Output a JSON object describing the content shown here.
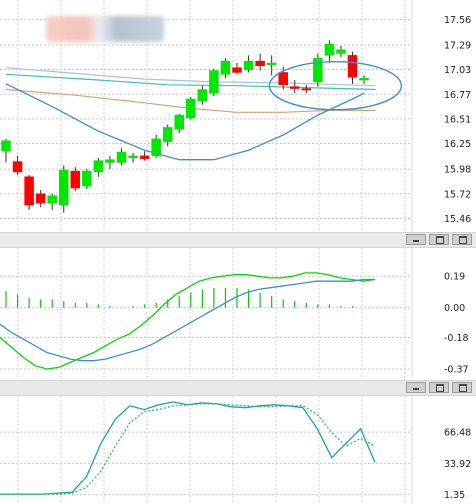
{
  "chart_data": [
    {
      "type": "candlestick",
      "y_ticks": [
        "17.56",
        "17.29",
        "17.03",
        "16.77",
        "16.51",
        "16.25",
        "15.98",
        "15.72",
        "15.46"
      ],
      "ylim": [
        15.38,
        17.68
      ],
      "grid": true,
      "colors": {
        "up": "#00e800",
        "down": "#ff0000",
        "ma_blue": "#3a8fd8",
        "ma_orange": "#e0a070",
        "ma_teal": "#3fc0b0",
        "ma_lightblue": "#9ec6e4",
        "circle": "#3a8fd8"
      },
      "candles": [
        {
          "o": 16.17,
          "h": 16.3,
          "l": 16.05,
          "c": 16.28
        },
        {
          "o": 16.06,
          "h": 16.12,
          "l": 15.92,
          "c": 15.95
        },
        {
          "o": 15.9,
          "h": 15.92,
          "l": 15.55,
          "c": 15.6
        },
        {
          "o": 15.72,
          "h": 15.76,
          "l": 15.58,
          "c": 15.62
        },
        {
          "o": 15.62,
          "h": 15.72,
          "l": 15.55,
          "c": 15.7
        },
        {
          "o": 15.6,
          "h": 16.02,
          "l": 15.52,
          "c": 15.97
        },
        {
          "o": 15.96,
          "h": 16.0,
          "l": 15.75,
          "c": 15.78
        },
        {
          "o": 15.8,
          "h": 15.98,
          "l": 15.77,
          "c": 15.96
        },
        {
          "o": 15.95,
          "h": 16.1,
          "l": 15.9,
          "c": 16.07
        },
        {
          "o": 16.05,
          "h": 16.12,
          "l": 15.98,
          "c": 16.08
        },
        {
          "o": 16.05,
          "h": 16.2,
          "l": 16.02,
          "c": 16.16
        },
        {
          "o": 16.1,
          "h": 16.15,
          "l": 16.05,
          "c": 16.12
        },
        {
          "o": 16.12,
          "h": 16.17,
          "l": 16.07,
          "c": 16.09
        },
        {
          "o": 16.12,
          "h": 16.34,
          "l": 16.1,
          "c": 16.3
        },
        {
          "o": 16.27,
          "h": 16.45,
          "l": 16.22,
          "c": 16.42
        },
        {
          "o": 16.4,
          "h": 16.56,
          "l": 16.36,
          "c": 16.55
        },
        {
          "o": 16.52,
          "h": 16.74,
          "l": 16.5,
          "c": 16.72
        },
        {
          "o": 16.7,
          "h": 16.86,
          "l": 16.66,
          "c": 16.82
        },
        {
          "o": 16.78,
          "h": 17.04,
          "l": 16.75,
          "c": 17.02
        },
        {
          "o": 16.98,
          "h": 17.15,
          "l": 16.94,
          "c": 17.12
        },
        {
          "o": 17.05,
          "h": 17.1,
          "l": 16.98,
          "c": 17.0
        },
        {
          "o": 17.03,
          "h": 17.18,
          "l": 17.0,
          "c": 17.12
        },
        {
          "o": 17.12,
          "h": 17.2,
          "l": 17.02,
          "c": 17.07
        },
        {
          "o": 17.08,
          "h": 17.18,
          "l": 16.97,
          "c": 17.1
        },
        {
          "o": 17.0,
          "h": 17.06,
          "l": 16.82,
          "c": 16.87
        },
        {
          "o": 16.85,
          "h": 16.92,
          "l": 16.78,
          "c": 16.83
        },
        {
          "o": 16.83,
          "h": 16.87,
          "l": 16.78,
          "c": 16.82
        },
        {
          "o": 16.9,
          "h": 17.2,
          "l": 16.85,
          "c": 17.15
        },
        {
          "o": 17.18,
          "h": 17.34,
          "l": 17.1,
          "c": 17.3
        },
        {
          "o": 17.2,
          "h": 17.28,
          "l": 17.16,
          "c": 17.24
        },
        {
          "o": 17.18,
          "h": 17.22,
          "l": 16.88,
          "c": 16.95
        },
        {
          "o": 16.92,
          "h": 16.97,
          "l": 16.88,
          "c": 16.94
        }
      ],
      "ma_blue": [
        [
          0,
          16.88
        ],
        [
          4,
          16.64
        ],
        [
          8,
          16.38
        ],
        [
          12,
          16.18
        ],
        [
          15,
          16.08
        ],
        [
          18,
          16.08
        ],
        [
          21,
          16.18
        ],
        [
          24,
          16.34
        ],
        [
          27,
          16.55
        ],
        [
          30,
          16.72
        ],
        [
          31,
          16.78
        ]
      ],
      "ma_orange": [
        [
          0,
          16.82
        ],
        [
          6,
          16.76
        ],
        [
          12,
          16.68
        ],
        [
          16,
          16.62
        ],
        [
          20,
          16.58
        ],
        [
          24,
          16.58
        ],
        [
          28,
          16.6
        ],
        [
          32,
          16.6
        ]
      ],
      "ma_teal": [
        [
          0,
          16.98
        ],
        [
          8,
          16.92
        ],
        [
          14,
          16.87
        ],
        [
          20,
          16.86
        ],
        [
          26,
          16.84
        ],
        [
          32,
          16.82
        ]
      ],
      "ma_lightblue": [
        [
          0,
          17.05
        ],
        [
          6,
          16.99
        ],
        [
          12,
          16.93
        ],
        [
          18,
          16.9
        ],
        [
          24,
          16.89
        ],
        [
          32,
          16.86
        ]
      ]
    },
    {
      "type": "line",
      "indicator": "MACD",
      "y_ticks": [
        "0.19",
        "0.00",
        "-0.18",
        "-0.37"
      ],
      "ylim": [
        -0.4,
        0.3
      ],
      "grid": true,
      "series": [
        {
          "color": "#00dd00",
          "values": [
            -0.18,
            -0.24,
            -0.3,
            -0.35,
            -0.37,
            -0.36,
            -0.33,
            -0.3,
            -0.27,
            -0.23,
            -0.19,
            -0.16,
            -0.11,
            -0.05,
            0.02,
            0.08,
            0.12,
            0.16,
            0.18,
            0.19,
            0.2,
            0.2,
            0.19,
            0.18,
            0.18,
            0.19,
            0.21,
            0.21,
            0.2,
            0.18,
            0.17,
            0.16,
            0.17
          ]
        },
        {
          "color": "#3a8fd8",
          "values": [
            -0.1,
            -0.15,
            -0.19,
            -0.23,
            -0.27,
            -0.29,
            -0.31,
            -0.32,
            -0.32,
            -0.31,
            -0.29,
            -0.27,
            -0.25,
            -0.22,
            -0.18,
            -0.14,
            -0.1,
            -0.06,
            -0.02,
            0.02,
            0.06,
            0.09,
            0.11,
            0.12,
            0.13,
            0.14,
            0.15,
            0.16,
            0.16,
            0.16,
            0.16,
            0.17,
            0.17
          ]
        }
      ],
      "histogram": [
        0.1,
        0.08,
        0.06,
        0.05,
        0.05,
        0.04,
        0.03,
        0.03,
        0.02,
        0.01,
        0.0,
        0.01,
        0.02,
        0.03,
        0.05,
        0.07,
        0.09,
        0.11,
        0.12,
        0.12,
        0.12,
        0.11,
        0.09,
        0.07,
        0.05,
        0.04,
        0.03,
        0.02,
        0.02,
        0.01,
        0.01,
        0.0
      ]
    },
    {
      "type": "line",
      "indicator": "stochastic",
      "y_ticks": [
        "66.48",
        "33.92",
        "1.35"
      ],
      "ylim": [
        0,
        100
      ],
      "grid": true,
      "series": [
        {
          "color": "#1aa3a8",
          "style": "solid",
          "values": [
            2,
            2,
            2,
            2,
            3,
            4,
            20,
            55,
            80,
            94,
            90,
            95,
            98,
            95,
            97,
            96,
            93,
            92,
            94,
            95,
            94,
            92,
            70,
            40,
            55,
            70,
            35
          ]
        },
        {
          "color": "#2fbf5a",
          "style": "dotted",
          "values": [
            2,
            2,
            2,
            2,
            2,
            3,
            9,
            26,
            52,
            76,
            88,
            90,
            94,
            95,
            96,
            96,
            95,
            94,
            93,
            93,
            94,
            94,
            85,
            66,
            52,
            60,
            52
          ]
        }
      ]
    }
  ]
}
